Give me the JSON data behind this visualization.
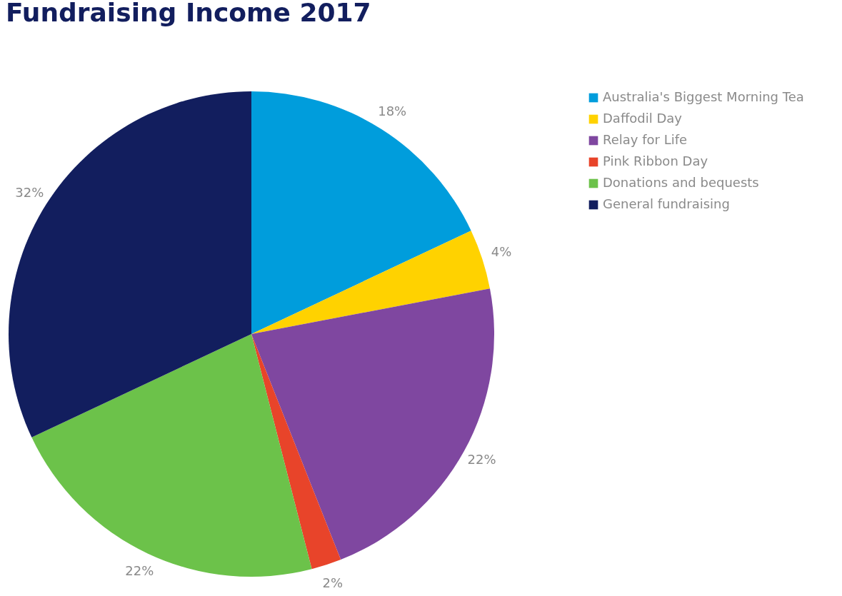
{
  "chart_data": {
    "type": "pie",
    "title": "Fundraising Income 2017",
    "categories": [
      "Australia's Biggest Morning Tea",
      "Daffodil Day",
      "Relay for Life",
      "Pink Ribbon Day",
      "Donations and bequests",
      "General fundraising"
    ],
    "values": [
      18,
      4,
      22,
      2,
      22,
      32
    ],
    "colors": [
      "#009ddc",
      "#ffd200",
      "#7f47a0",
      "#e8442a",
      "#6cc24a",
      "#121e5e"
    ],
    "value_labels": [
      "18%",
      "4%",
      "22%",
      "2%",
      "22%",
      "32%"
    ],
    "legend": "right"
  }
}
